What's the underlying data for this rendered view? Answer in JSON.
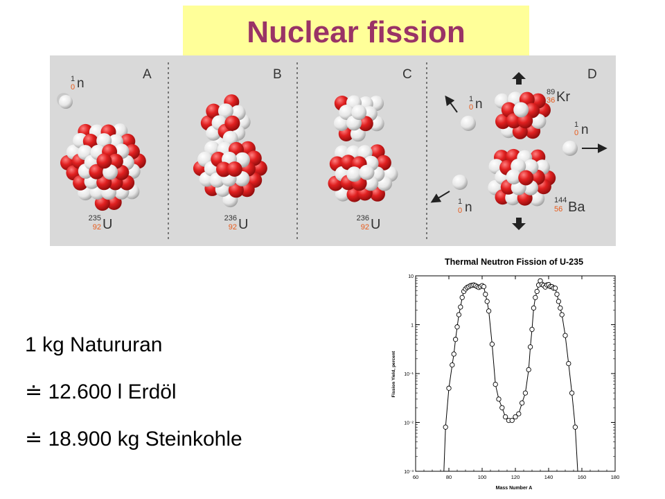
{
  "title": "Nuclear fission",
  "diagram": {
    "colors": {
      "panel_bg": "#d9d9d9",
      "proton": "#e02020",
      "neutron": "#f2f2f2",
      "divider": "#555555",
      "index_orange": "#e85a1a"
    },
    "panels": [
      {
        "letter": "A",
        "neutron": {
          "mass": "1",
          "atomic": "0",
          "symbol": "n"
        },
        "nucleus": {
          "mass": "235",
          "atomic": "92",
          "symbol": "U"
        }
      },
      {
        "letter": "B",
        "nucleus": {
          "mass": "236",
          "atomic": "92",
          "symbol": "U"
        }
      },
      {
        "letter": "C",
        "nucleus": {
          "mass": "236",
          "atomic": "92",
          "symbol": "U"
        }
      },
      {
        "letter": "D",
        "products": [
          {
            "mass": "89",
            "atomic": "36",
            "symbol": "Kr"
          },
          {
            "mass": "144",
            "atomic": "56",
            "symbol": "Ba"
          }
        ],
        "neutrons": [
          {
            "mass": "1",
            "atomic": "0",
            "symbol": "n"
          },
          {
            "mass": "1",
            "atomic": "0",
            "symbol": "n"
          },
          {
            "mass": "1",
            "atomic": "0",
            "symbol": "n"
          }
        ]
      }
    ]
  },
  "facts": {
    "line1": "1 kg Natururan",
    "line2": "≐ 12.600 l Erdöl",
    "line3": "≐ 18.900 kg Steinkohle"
  },
  "chart_data": {
    "type": "scatter",
    "title": "Thermal Neutron Fission of U-235",
    "xlabel": "Mass Number A",
    "ylabel": "Fission Yield, percent",
    "yscale": "log",
    "xlim": [
      60,
      180
    ],
    "ylim": [
      0.001,
      10
    ],
    "x_ticks": [
      "60",
      "80",
      "100",
      "120",
      "140",
      "160",
      "180"
    ],
    "y_ticks": [
      "10",
      "1",
      "10⁻¹",
      "10⁻²",
      "10⁻³"
    ],
    "series": [
      {
        "x": [
          78,
          80,
          82,
          83,
          84,
          85,
          86,
          87,
          88,
          89,
          90,
          91,
          92,
          93,
          94,
          95,
          96,
          97,
          98,
          99,
          100,
          101,
          102,
          103,
          104,
          106,
          108,
          110,
          112,
          114,
          116,
          118,
          120,
          122,
          124,
          126,
          128,
          129,
          130,
          131,
          132,
          133,
          134,
          135,
          136,
          137,
          138,
          139,
          140,
          141,
          142,
          143,
          144,
          145,
          146,
          147,
          148,
          150,
          152,
          154,
          156
        ],
        "y": [
          0.008,
          0.05,
          0.15,
          0.25,
          0.5,
          0.9,
          1.6,
          2.3,
          3.6,
          4.8,
          5.4,
          5.8,
          6.0,
          6.3,
          6.4,
          6.5,
          6.3,
          6.0,
          5.8,
          6.0,
          6.3,
          6.0,
          4.2,
          3.0,
          1.9,
          0.4,
          0.06,
          0.03,
          0.02,
          0.013,
          0.011,
          0.011,
          0.013,
          0.015,
          0.025,
          0.04,
          0.12,
          0.35,
          0.8,
          2.2,
          3.6,
          4.8,
          6.5,
          7.9,
          6.7,
          6.4,
          5.9,
          6.5,
          6.6,
          6.0,
          6.0,
          5.6,
          5.6,
          4.2,
          3.0,
          2.2,
          1.6,
          0.6,
          0.16,
          0.04,
          0.008
        ]
      }
    ]
  }
}
